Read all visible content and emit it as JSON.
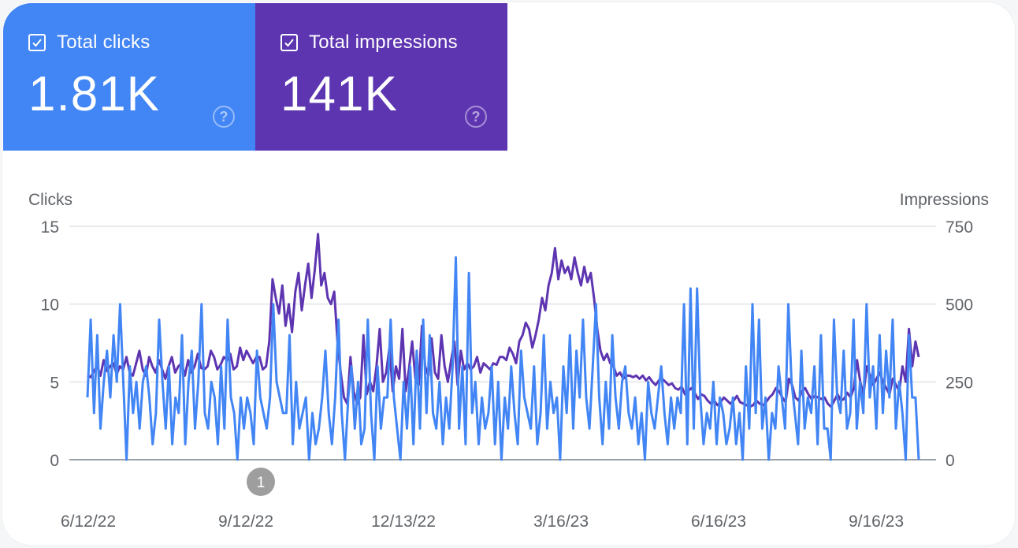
{
  "metrics": {
    "clicks": {
      "label": "Total clicks",
      "value": "1.81K",
      "color": "#4285f4",
      "checked": true,
      "help_icon": "help-circle-icon"
    },
    "impressions": {
      "label": "Total impressions",
      "value": "141K",
      "color": "#5e35b1",
      "checked": true,
      "help_icon": "help-circle-icon"
    }
  },
  "annotation": {
    "label": "1",
    "date": "9/12/22"
  },
  "chart_data": {
    "type": "line",
    "title": "",
    "ylabel": "Clicks",
    "y2label": "Impressions",
    "ylim": [
      0,
      15
    ],
    "y2lim": [
      0,
      750
    ],
    "yticks": [
      "0",
      "5",
      "10",
      "15"
    ],
    "y2ticks": [
      "0",
      "250",
      "500",
      "750"
    ],
    "xticks": [
      "6/12/22",
      "9/12/22",
      "12/13/22",
      "3/16/23",
      "6/16/23",
      "9/16/23"
    ],
    "x_start": "6/12/22",
    "x_step_days": 2,
    "grid": true,
    "legend": "none",
    "series": [
      {
        "name": "Clicks",
        "axis": "left",
        "color": "#4285f4",
        "values": [
          4,
          9,
          3,
          8,
          2,
          5,
          7,
          4,
          8,
          5,
          10,
          5,
          0,
          6,
          3,
          5,
          2,
          5,
          6,
          4,
          1,
          3,
          9,
          5,
          2,
          6,
          1,
          4,
          3,
          8,
          1,
          5,
          7,
          2,
          5,
          10,
          3,
          2,
          5,
          4,
          1,
          6,
          2,
          9,
          4,
          3,
          0,
          4,
          2,
          4,
          3,
          1,
          7,
          4,
          3,
          2,
          4,
          10,
          5,
          4,
          3,
          3,
          8,
          1,
          5,
          2,
          3,
          4,
          0,
          3,
          1,
          2,
          4,
          7,
          3,
          1,
          4,
          9,
          3,
          0,
          4,
          6,
          2,
          5,
          1,
          2,
          9,
          3,
          0,
          6,
          2,
          4,
          4,
          9,
          4,
          2,
          0,
          5,
          2,
          6,
          1,
          7,
          2,
          9,
          3,
          8,
          3,
          2,
          5,
          1,
          4,
          2,
          6,
          13,
          2,
          6,
          1,
          12,
          3,
          5,
          1,
          4,
          2,
          3,
          6,
          1,
          5,
          0,
          4,
          2,
          6,
          3,
          1,
          7,
          4,
          3,
          2,
          6,
          1,
          3,
          8,
          2,
          5,
          3,
          4,
          0,
          6,
          3,
          8,
          2,
          7,
          4,
          9,
          4,
          2,
          6,
          10,
          4,
          1,
          5,
          2,
          8,
          4,
          2,
          5,
          6,
          3,
          2,
          4,
          1,
          3,
          0,
          5,
          3,
          2,
          4,
          6,
          3,
          1,
          4,
          2,
          4,
          3,
          10,
          1,
          11,
          2,
          11,
          4,
          1,
          3,
          2,
          5,
          1,
          4,
          3,
          1,
          2,
          4,
          1,
          3,
          0,
          6,
          2,
          10,
          3,
          9,
          2,
          4,
          0,
          3,
          2,
          6,
          4,
          2,
          10,
          5,
          3,
          1,
          7,
          2,
          4,
          3,
          6,
          1,
          8,
          2,
          2,
          0,
          9,
          4,
          3,
          7,
          2,
          3,
          9,
          2,
          5,
          3,
          10,
          4,
          6,
          2,
          8,
          3,
          7,
          4,
          9,
          2,
          5,
          3,
          0,
          8,
          4,
          4,
          0
        ]
      },
      {
        "name": "Impressions",
        "axis": "right",
        "color": "#5e35b1",
        "values": [
          270,
          265,
          285,
          300,
          270,
          320,
          285,
          300,
          310,
          275,
          300,
          290,
          330,
          280,
          270,
          310,
          350,
          290,
          270,
          330,
          300,
          280,
          320,
          290,
          260,
          300,
          330,
          280,
          300,
          310,
          270,
          320,
          280,
          300,
          340,
          295,
          290,
          300,
          350,
          330,
          290,
          305,
          330,
          320,
          340,
          290,
          300,
          360,
          320,
          350,
          330,
          310,
          330,
          330,
          290,
          300,
          380,
          580,
          520,
          470,
          560,
          430,
          500,
          410,
          540,
          600,
          480,
          560,
          630,
          520,
          610,
          725,
          560,
          600,
          520,
          500,
          540,
          380,
          280,
          200,
          180,
          330,
          220,
          180,
          200,
          400,
          210,
          250,
          220,
          300,
          420,
          250,
          280,
          360,
          220,
          300,
          260,
          420,
          220,
          290,
          380,
          260,
          240,
          430,
          300,
          270,
          390,
          280,
          260,
          400,
          300,
          250,
          320,
          380,
          240,
          350,
          290,
          310,
          290,
          300,
          330,
          280,
          310,
          300,
          290,
          310,
          305,
          330,
          330,
          320,
          360,
          340,
          310,
          380,
          400,
          440,
          420,
          360,
          400,
          450,
          520,
          480,
          560,
          600,
          680,
          580,
          640,
          600,
          620,
          580,
          650,
          600,
          560,
          620,
          570,
          600,
          520,
          420,
          350,
          320,
          340,
          310,
          300,
          270,
          280,
          260,
          270,
          270,
          265,
          270,
          260,
          270,
          255,
          265,
          250,
          240,
          255,
          260,
          250,
          240,
          245,
          230,
          225,
          235,
          210,
          220,
          230,
          215,
          195,
          210,
          205,
          190,
          180,
          190,
          175,
          185,
          200,
          190,
          180,
          190,
          205,
          185,
          180,
          175,
          170,
          175,
          190,
          180,
          175,
          185,
          200,
          210,
          230,
          220,
          200,
          185,
          260,
          240,
          200,
          190,
          220,
          230,
          210,
          195,
          205,
          200,
          195,
          200,
          180,
          170,
          190,
          210,
          190,
          195,
          215,
          200,
          230,
          320,
          250,
          210,
          300,
          270,
          240,
          260,
          280,
          250,
          230,
          210,
          260,
          240,
          220,
          300,
          250,
          420,
          300,
          380,
          330
        ]
      }
    ]
  }
}
